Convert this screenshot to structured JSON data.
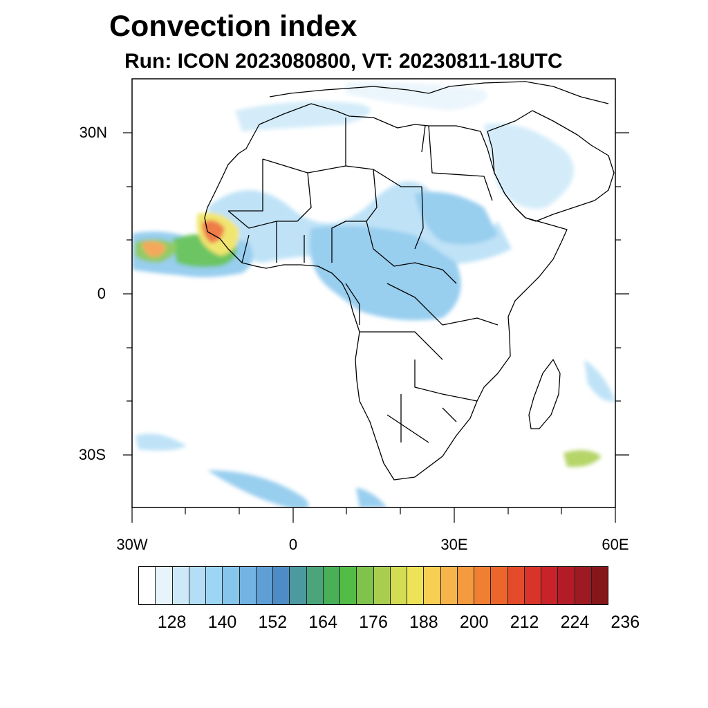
{
  "title": "Convection index",
  "subtitle": "Run: ICON 2023080800,  VT: 20230811-18UTC",
  "axes": {
    "lat_ticks": [
      "30N",
      "0",
      "30S"
    ],
    "lon_ticks": [
      "30W",
      "0",
      "30E",
      "60E"
    ]
  },
  "colorbar": {
    "colors": [
      "#ffffff",
      "#e8f4fc",
      "#cde9f8",
      "#b4def6",
      "#9dd6f5",
      "#87c6ec",
      "#72b3e3",
      "#5f9fd6",
      "#4d8cc4",
      "#4a9aa0",
      "#4aa57a",
      "#49b057",
      "#53bc47",
      "#7fc24c",
      "#a9ce4f",
      "#d3dc52",
      "#eee256",
      "#f8cf53",
      "#f7b44b",
      "#f49a3f",
      "#f07f34",
      "#ec662c",
      "#e34b2a",
      "#d83429",
      "#c72329",
      "#b31c26",
      "#9e1a22",
      "#85171b"
    ],
    "labels": [
      "128",
      "140",
      "152",
      "164",
      "176",
      "188",
      "200",
      "212",
      "224",
      "236"
    ]
  },
  "map": {
    "projection": "cylindrical-equidistant",
    "lon_range": [
      -30,
      60
    ],
    "lat_range": [
      -40,
      40
    ],
    "land_color": "#ffffff",
    "coast_color": "#000000"
  }
}
